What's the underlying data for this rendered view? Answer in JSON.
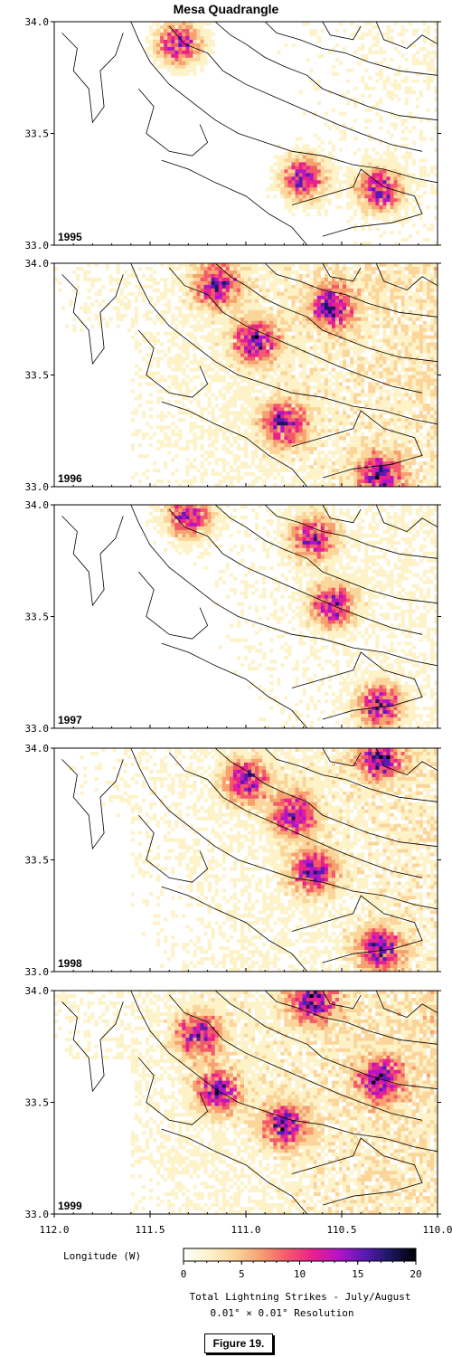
{
  "title": "Mesa Quadrangle",
  "chart_data": {
    "type": "heatmap",
    "title": "Mesa Quadrangle",
    "panels": [
      {
        "year": "1995",
        "intensity": 0.35,
        "hotspots": [
          [
            110.3,
            33.25
          ],
          [
            110.7,
            33.3
          ],
          [
            111.35,
            33.9
          ]
        ]
      },
      {
        "year": "1996",
        "intensity": 0.75,
        "hotspots": [
          [
            110.8,
            33.28
          ],
          [
            110.55,
            33.8
          ],
          [
            110.3,
            33.05
          ],
          [
            111.15,
            33.9
          ],
          [
            110.95,
            33.65
          ]
        ]
      },
      {
        "year": "1997",
        "intensity": 0.45,
        "hotspots": [
          [
            110.55,
            33.55
          ],
          [
            110.3,
            33.1
          ],
          [
            111.3,
            33.95
          ],
          [
            110.65,
            33.85
          ]
        ]
      },
      {
        "year": "1998",
        "intensity": 0.65,
        "hotspots": [
          [
            110.65,
            33.45
          ],
          [
            110.3,
            33.1
          ],
          [
            110.75,
            33.7
          ],
          [
            111.0,
            33.85
          ],
          [
            110.3,
            33.95
          ]
        ]
      },
      {
        "year": "1999",
        "intensity": 0.8,
        "hotspots": [
          [
            111.25,
            33.8
          ],
          [
            110.8,
            33.4
          ],
          [
            110.65,
            33.95
          ],
          [
            111.15,
            33.55
          ],
          [
            110.3,
            33.6
          ]
        ]
      }
    ],
    "ylabel_ticks": [
      "34.0",
      "33.5",
      "33.0"
    ],
    "y_values": [
      34.0,
      33.5,
      33.0
    ],
    "xlabel": "Longitude (W)",
    "x_ticks": [
      "112.0",
      "111.5",
      "111.0",
      "110.5",
      "110.0"
    ],
    "x_values": [
      112.0,
      111.5,
      111.0,
      110.5,
      110.0
    ],
    "xlim": [
      112.0,
      110.0
    ],
    "ylim": [
      33.0,
      34.0
    ],
    "colorbar": {
      "ticks": [
        "0",
        "5",
        "10",
        "15",
        "20"
      ],
      "values": [
        0,
        5,
        10,
        15,
        20
      ],
      "label": "Total Lightning Strikes - July/August",
      "resolution": "0.01° × 0.01° Resolution",
      "colors": [
        "#ffffff",
        "#fdf2c8",
        "#fbd59a",
        "#f7a070",
        "#f25a6a",
        "#e8208f",
        "#b414c8",
        "#5a1ab4",
        "#1c1660",
        "#000000"
      ]
    }
  },
  "caption": "Figure 19."
}
